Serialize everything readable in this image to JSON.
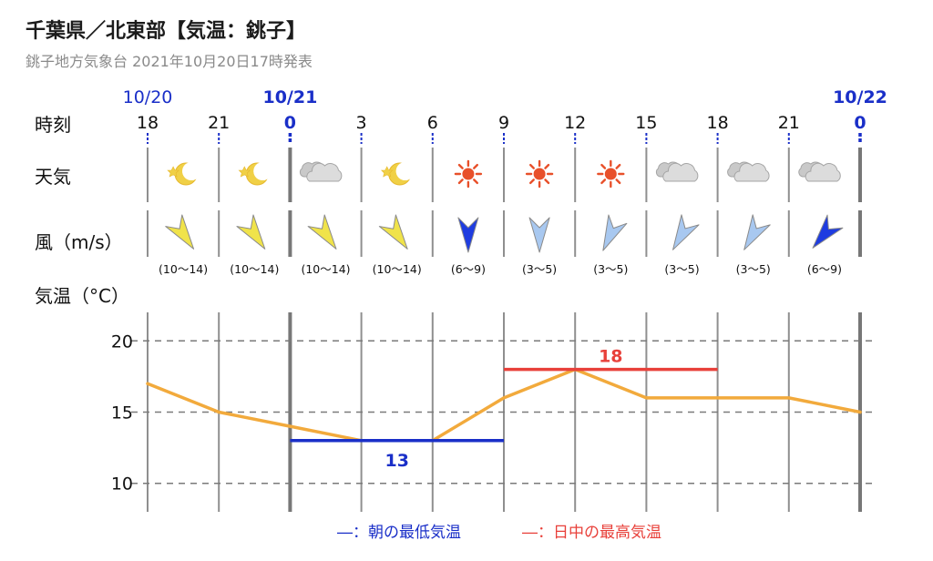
{
  "header": {
    "title": "千葉県／北東部【気温：銚子】",
    "subtitle": "銚子地方気象台 2021年10月20日17時発表"
  },
  "row_labels": {
    "time": "時刻",
    "weather": "天気",
    "wind": "風（m/s）",
    "temp": "気温（°C）"
  },
  "dates": [
    "10/20",
    "10/21",
    "10/22"
  ],
  "hours": [
    "18",
    "21",
    "0",
    "3",
    "6",
    "9",
    "12",
    "15",
    "18",
    "21",
    "0"
  ],
  "weather_icons": [
    "moon-star-icon",
    "moon-star-icon",
    "cloud-icon",
    "moon-star-icon",
    "sun-icon",
    "sun-icon",
    "sun-icon",
    "cloud-icon",
    "cloud-icon",
    "cloud-icon"
  ],
  "wind": [
    {
      "range": "(10〜14)",
      "color": "#f0e34a"
    },
    {
      "range": "(10〜14)",
      "color": "#f0e34a"
    },
    {
      "range": "(10〜14)",
      "color": "#f0e34a"
    },
    {
      "range": "(10〜14)",
      "color": "#f0e34a"
    },
    {
      "range": "(6〜9)",
      "color": "#1e3ce0"
    },
    {
      "range": "(3〜5)",
      "color": "#a8c8f0"
    },
    {
      "range": "(3〜5)",
      "color": "#a8c8f0"
    },
    {
      "range": "(3〜5)",
      "color": "#a8c8f0"
    },
    {
      "range": "(3〜5)",
      "color": "#a8c8f0"
    },
    {
      "range": "(6〜9)",
      "color": "#1e3ce0"
    }
  ],
  "legend": {
    "min_label": "―：朝の最低気温",
    "max_label": "―：日中の最高気温"
  },
  "colors": {
    "line": "#f2aa3c",
    "min": "#1a2fc8",
    "max": "#e8403a",
    "date": "#1a2fc8"
  },
  "chart_data": {
    "type": "line",
    "x": [
      "18",
      "21",
      "0",
      "3",
      "6",
      "9",
      "12",
      "15",
      "18",
      "21",
      "0"
    ],
    "series": [
      {
        "values": [
          17,
          15,
          14,
          13,
          13,
          16,
          18,
          16,
          16,
          16,
          15
        ]
      }
    ],
    "min_temp": {
      "value": 13,
      "label": "13",
      "from_index": 2,
      "to_index": 5
    },
    "max_temp": {
      "value": 18,
      "label": "18",
      "from_index": 5,
      "to_index": 8
    },
    "yticks": [
      "10",
      "15",
      "20"
    ],
    "ylim": [
      8,
      22
    ],
    "grid": true
  }
}
